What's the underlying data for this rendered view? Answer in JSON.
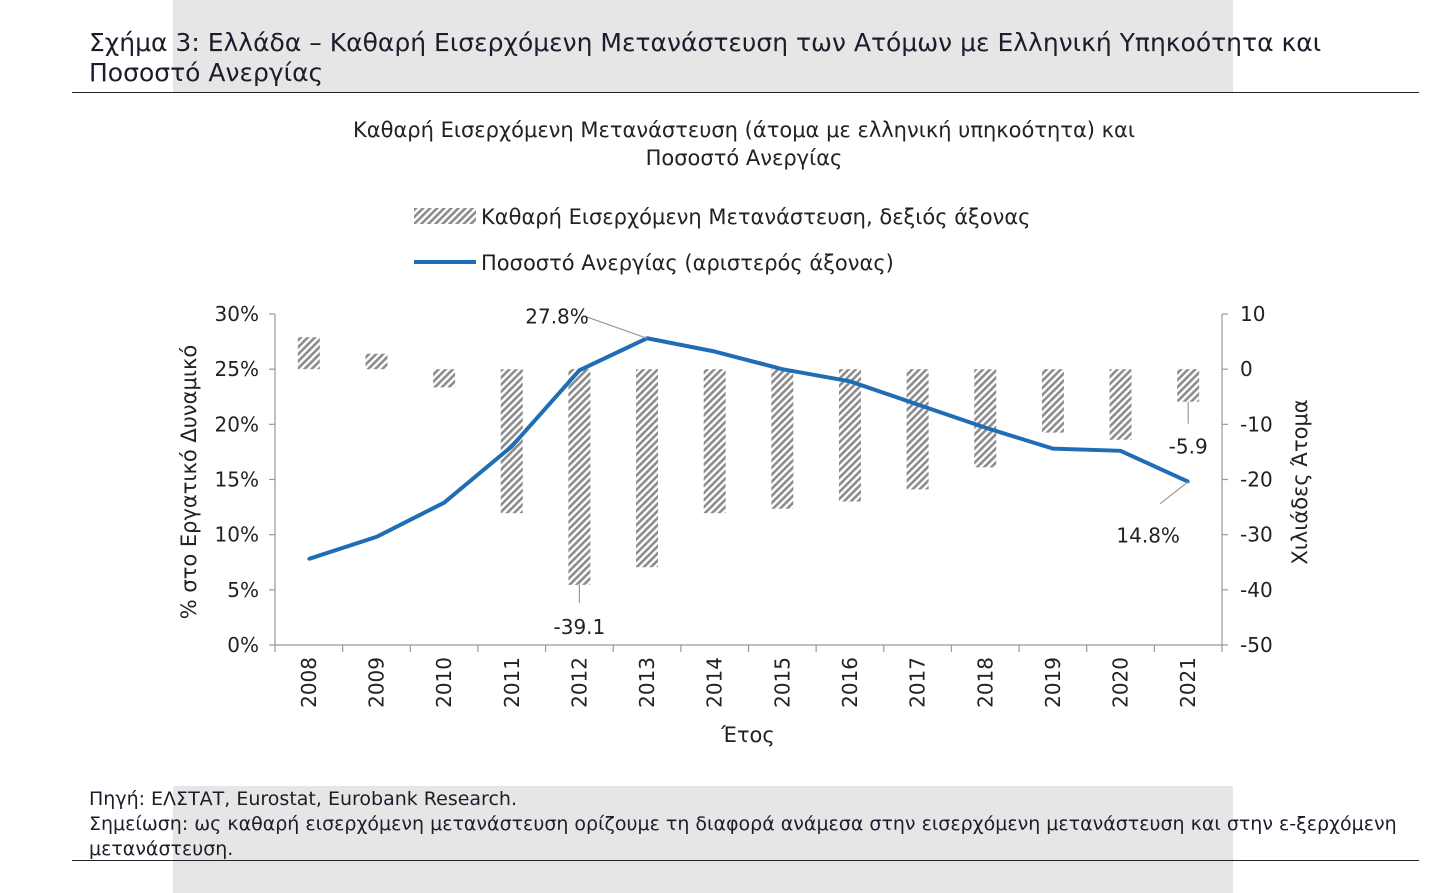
{
  "figure": {
    "title": "Σχήμα 3: Ελλάδα – Καθαρή Εισερχόμενη Μετανάστευση των Ατόμων με Ελληνική Υπηκοότητα και Ποσοστό Ανεργίας",
    "source": "Πηγή: ΕΛΣΤΑΤ, Eurostat, Eurobank Research.",
    "note": "Σημείωση: ως καθαρή εισερχόμενη μετανάστευση ορίζουμε τη διαφορά ανάμεσα στην εισερχόμενη μετανάστευση και στην ε-ξερχόμενη μετανάστευση."
  },
  "colors": {
    "line": "#1f6db5",
    "bar_stripe": "#8c8c8c",
    "axis": "#999999",
    "background_band": "#e6e6e6"
  },
  "chart_data": {
    "type": "bar",
    "title": "Καθαρή Εισερχόμενη Μετανάστευση (άτομα με ελληνική υπηκοότητα) και Ποσοστό Ανεργίας",
    "xlabel": "Έτος",
    "ylabel_left": "% στο Εργατικό Δυναμικό",
    "ylabel_right": "Χιλιάδες Άτομα",
    "categories": [
      "2008",
      "2009",
      "2010",
      "2011",
      "2012",
      "2013",
      "2014",
      "2015",
      "2016",
      "2017",
      "2018",
      "2019",
      "2020",
      "2021"
    ],
    "left_axis": {
      "min": 0,
      "max": 30,
      "step": 5,
      "tick_labels": [
        "0%",
        "5%",
        "10%",
        "15%",
        "20%",
        "25%",
        "30%"
      ]
    },
    "right_axis": {
      "min": -50,
      "max": 10,
      "step": 10,
      "tick_labels": [
        "-50",
        "-40",
        "-30",
        "-20",
        "-10",
        "0",
        "10"
      ]
    },
    "series": [
      {
        "name": "Καθαρή Εισερχόμενη Μετανάστευση, δεξιός άξονας",
        "type": "bar",
        "axis": "right",
        "pattern": "diagonal-hatch",
        "values": [
          5.8,
          2.8,
          -3.3,
          -26.1,
          -39.1,
          -35.9,
          -26.1,
          -25.3,
          -24.0,
          -21.8,
          -17.8,
          -11.5,
          -12.8,
          -5.9
        ]
      },
      {
        "name": "Ποσοστό Ανεργίας (αριστερός άξονας)",
        "type": "line",
        "axis": "left",
        "values": [
          7.8,
          9.8,
          12.9,
          18.0,
          24.9,
          27.8,
          26.6,
          25.0,
          23.9,
          21.8,
          19.7,
          17.8,
          17.6,
          14.8
        ]
      }
    ],
    "annotations": [
      {
        "text": "27.8%",
        "series": 1,
        "index": 5
      },
      {
        "text": "-39.1",
        "series": 0,
        "index": 4
      },
      {
        "text": "-5.9",
        "series": 0,
        "index": 13
      },
      {
        "text": "14.8%",
        "series": 1,
        "index": 13
      }
    ],
    "legend_position": "top-center",
    "grid": false
  }
}
